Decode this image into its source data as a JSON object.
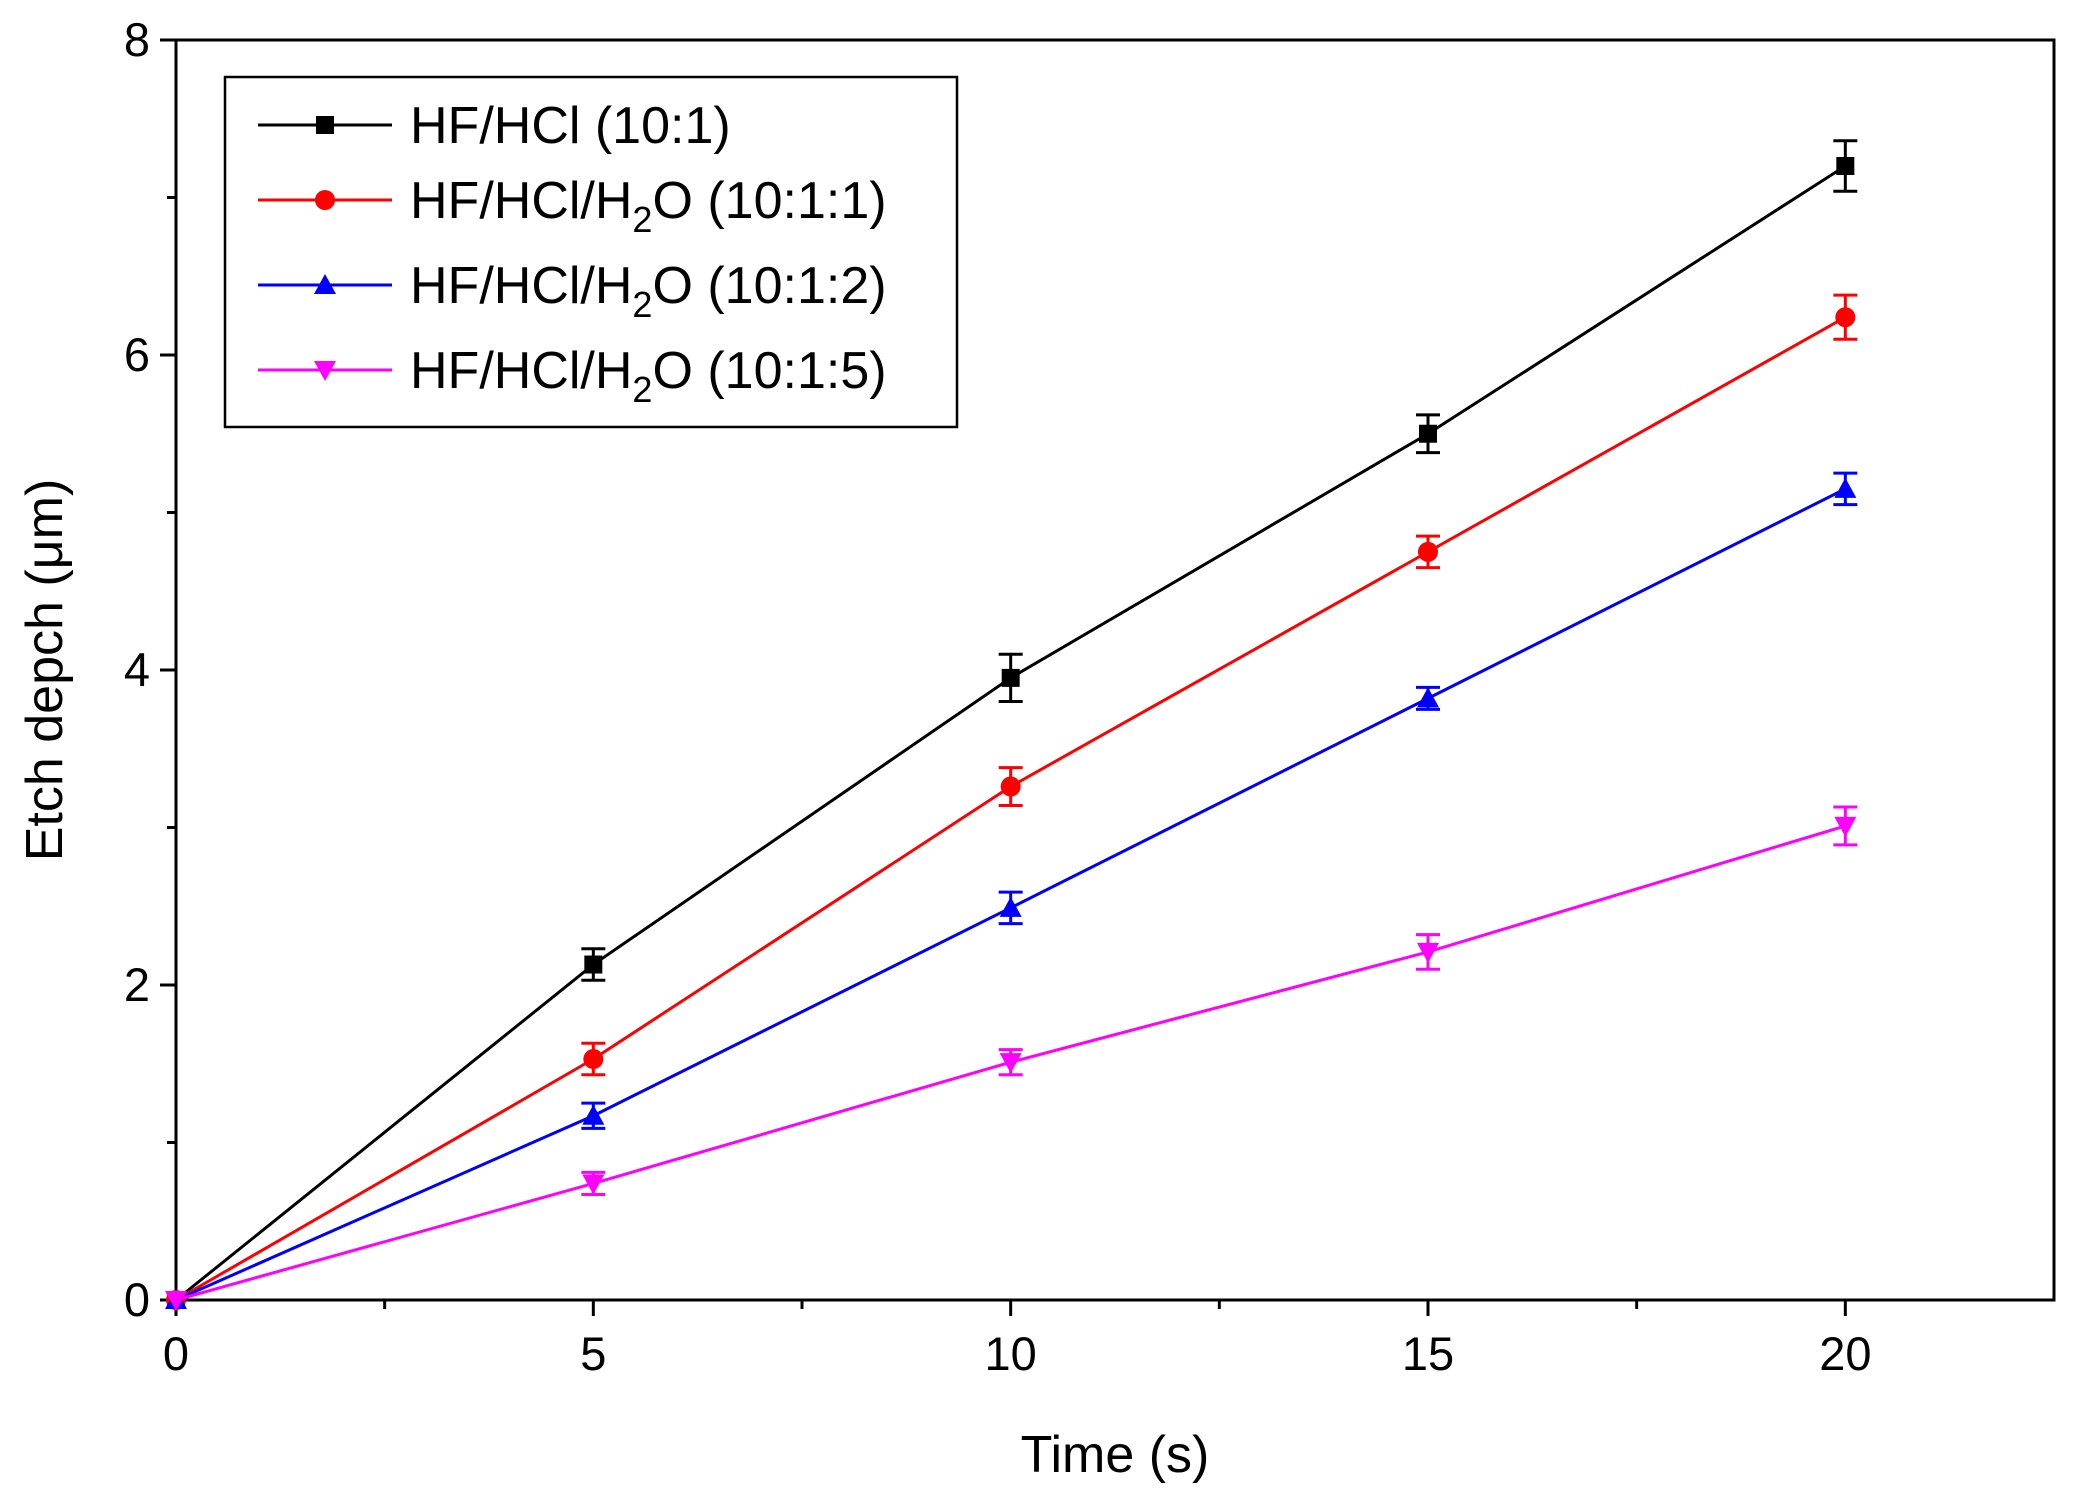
{
  "chart_data": {
    "type": "line",
    "title": "",
    "xlabel": "Time (s)",
    "ylabel": "Etch depch (μm)",
    "xlim": [
      0,
      22.5
    ],
    "ylim": [
      0,
      8
    ],
    "x_ticks": [
      0,
      5,
      10,
      15,
      20
    ],
    "y_ticks": [
      0,
      2,
      4,
      6,
      8
    ],
    "grid": false,
    "legend_position": "top-left",
    "x": [
      0,
      5,
      10,
      15,
      20
    ],
    "series": [
      {
        "name": "HF/HCl (10:1)",
        "label_main": "HF/HCl (10:1)",
        "color": "#000000",
        "marker": "square",
        "values": [
          0,
          2.13,
          3.95,
          5.5,
          7.2
        ],
        "errors": [
          0,
          0.1,
          0.15,
          0.12,
          0.16
        ]
      },
      {
        "name": "HF/HCl/H2O (10:1:1)",
        "label_pre": "HF/HCl/H",
        "label_sub": "2",
        "label_post": "O (10:1:1)",
        "color": "#ff0000",
        "marker": "circle",
        "values": [
          0,
          1.53,
          3.26,
          4.75,
          6.24
        ],
        "errors": [
          0,
          0.1,
          0.12,
          0.1,
          0.14
        ]
      },
      {
        "name": "HF/HCl/H2O (10:1:2)",
        "label_pre": "HF/HCl/H",
        "label_sub": "2",
        "label_post": "O (10:1:2)",
        "color": "#0000ff",
        "marker": "triangle-up",
        "values": [
          0,
          1.17,
          2.49,
          3.82,
          5.15
        ],
        "errors": [
          0,
          0.08,
          0.1,
          0.07,
          0.1
        ]
      },
      {
        "name": "HF/HCl/H2O (10:1:5)",
        "label_pre": "HF/HCl/H",
        "label_sub": "2",
        "label_post": "O (10:1:5)",
        "color": "#ff00ff",
        "marker": "triangle-down",
        "values": [
          0,
          0.74,
          1.51,
          2.21,
          3.01
        ],
        "errors": [
          0,
          0.07,
          0.08,
          0.11,
          0.12
        ]
      }
    ]
  }
}
